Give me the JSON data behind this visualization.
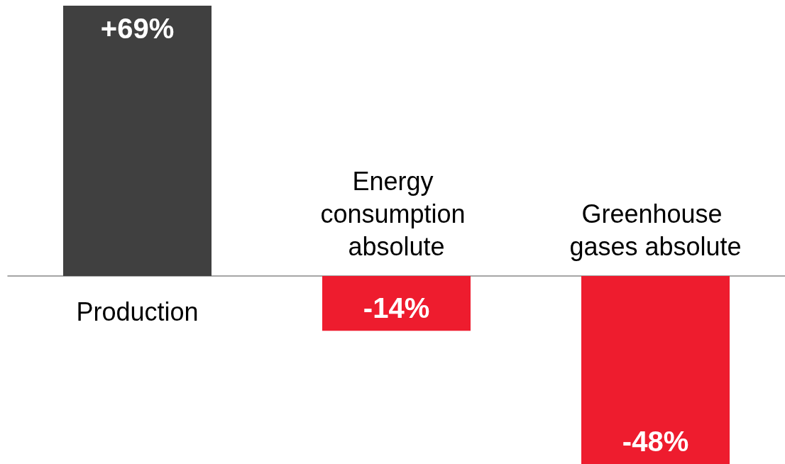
{
  "chart_data": {
    "type": "bar",
    "categories": [
      "Production",
      "Energy consumption absolute",
      "Greenhouse gases absolute"
    ],
    "values": [
      69,
      -14,
      -48
    ],
    "value_labels": [
      "+69%",
      "-14%",
      "-48%"
    ],
    "colors": [
      "#404040",
      "#ee1c2e",
      "#ee1c2e"
    ]
  }
}
